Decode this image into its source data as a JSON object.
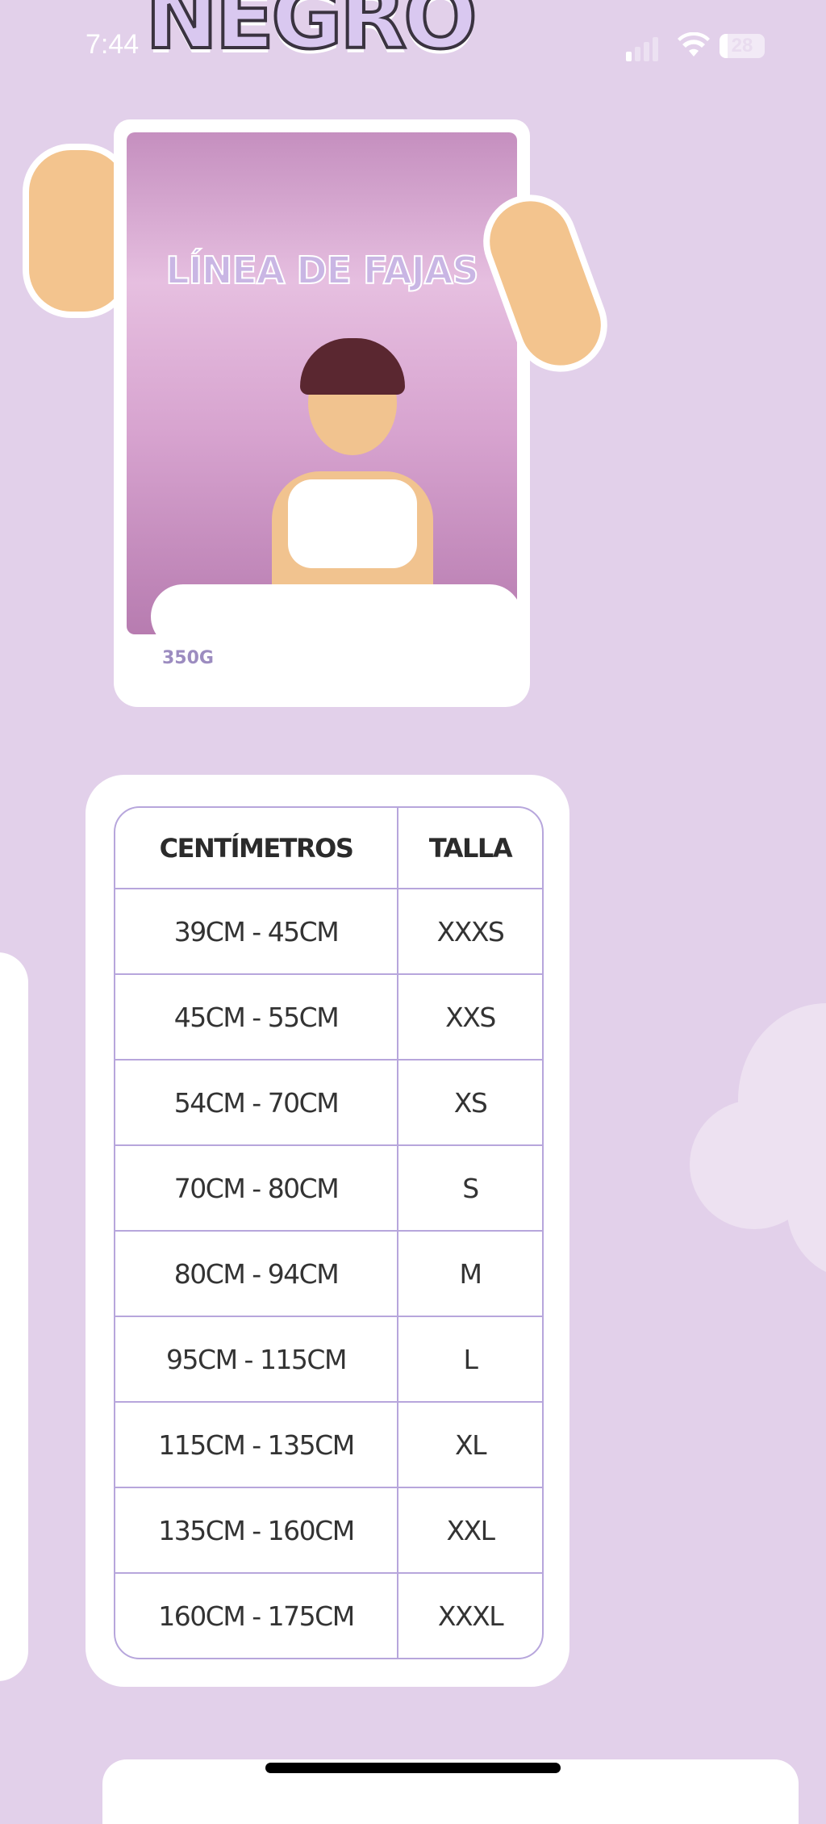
{
  "status_bar": {
    "time": "7:44",
    "battery": "28",
    "icons": [
      "signal-icon",
      "wifi-icon",
      "battery-icon"
    ]
  },
  "header_logo": "NEGRO",
  "product": {
    "title": "LÍNEA DE FAJAS",
    "weight": "350G"
  },
  "size_table": {
    "headers": [
      "CENTÍMETROS",
      "TALLA"
    ],
    "rows": [
      [
        "39CM - 45CM",
        "XXXS"
      ],
      [
        "45CM - 55CM",
        "XXS"
      ],
      [
        "54CM - 70CM",
        "XS"
      ],
      [
        "70CM - 80CM",
        "S"
      ],
      [
        "80CM - 94CM",
        "M"
      ],
      [
        "95CM - 115CM",
        "L"
      ],
      [
        "115CM - 135CM",
        "XL"
      ],
      [
        "135CM - 160CM",
        "XXL"
      ],
      [
        "160CM - 175CM",
        "XXXL"
      ]
    ]
  },
  "colors": {
    "background": "#e2d0ea",
    "table_border": "#b7a6dc",
    "card": "#ffffff"
  }
}
